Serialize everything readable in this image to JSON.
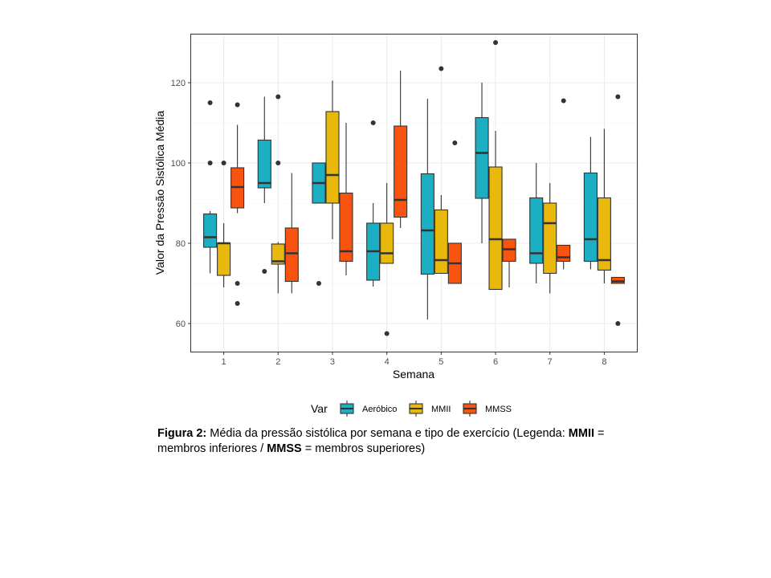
{
  "chart_data": {
    "type": "boxplot",
    "xlabel": "Semana",
    "ylabel": "Valor da Pressão Sistólica Média",
    "categories": [
      "1",
      "2",
      "3",
      "4",
      "5",
      "6",
      "7",
      "8"
    ],
    "ylim": [
      53,
      132
    ],
    "yticks": [
      60,
      80,
      100,
      120
    ],
    "grid": true,
    "legend": {
      "title": "Var",
      "position": "bottom"
    },
    "series": [
      {
        "name": "Aeróbico",
        "color": "#1CAFC3",
        "boxes": [
          {
            "category": "1",
            "wlo": 72.5,
            "q1": 79,
            "med": 81.5,
            "q3": 87.3,
            "whi": 88,
            "outliers": [
              115,
              100
            ]
          },
          {
            "category": "2",
            "wlo": 90,
            "q1": 93.8,
            "med": 95,
            "q3": 105.7,
            "whi": 116.5,
            "outliers": [
              73
            ]
          },
          {
            "category": "3",
            "wlo": 90,
            "q1": 90,
            "med": 95,
            "q3": 100,
            "whi": 100,
            "outliers": [
              70
            ]
          },
          {
            "category": "4",
            "wlo": 69.2,
            "q1": 70.8,
            "med": 78,
            "q3": 85,
            "whi": 90,
            "outliers": [
              110
            ]
          },
          {
            "category": "5",
            "wlo": 61,
            "q1": 72.3,
            "med": 83.2,
            "q3": 97.3,
            "whi": 116,
            "outliers": []
          },
          {
            "category": "6",
            "wlo": 80,
            "q1": 91.2,
            "med": 102.5,
            "q3": 111.3,
            "whi": 120,
            "outliers": []
          },
          {
            "category": "7",
            "wlo": 70,
            "q1": 75,
            "med": 77.5,
            "q3": 91.3,
            "whi": 100,
            "outliers": []
          },
          {
            "category": "8",
            "wlo": 73.5,
            "q1": 75.5,
            "med": 81,
            "q3": 97.5,
            "whi": 106.5,
            "outliers": []
          }
        ]
      },
      {
        "name": "MMII",
        "color": "#E8B80C",
        "boxes": [
          {
            "category": "1",
            "wlo": 69,
            "q1": 72,
            "med": 80,
            "q3": 80,
            "whi": 85,
            "outliers": [
              100
            ]
          },
          {
            "category": "2",
            "wlo": 67.5,
            "q1": 74.8,
            "med": 75.5,
            "q3": 79.8,
            "whi": 80.3,
            "outliers": [
              116.5,
              100
            ]
          },
          {
            "category": "3",
            "wlo": 81,
            "q1": 90,
            "med": 97,
            "q3": 112.8,
            "whi": 120.5,
            "outliers": []
          },
          {
            "category": "4",
            "wlo": 75,
            "q1": 75,
            "med": 77.5,
            "q3": 85,
            "whi": 95,
            "outliers": [
              57.5
            ]
          },
          {
            "category": "5",
            "wlo": 72.5,
            "q1": 72.5,
            "med": 75.8,
            "q3": 88.3,
            "whi": 92,
            "outliers": [
              123.5
            ]
          },
          {
            "category": "6",
            "wlo": 68.5,
            "q1": 68.5,
            "med": 81,
            "q3": 99,
            "whi": 108,
            "outliers": [
              130
            ]
          },
          {
            "category": "7",
            "wlo": 67.5,
            "q1": 72.5,
            "med": 85,
            "q3": 90,
            "whi": 95,
            "outliers": []
          },
          {
            "category": "8",
            "wlo": 70,
            "q1": 73.3,
            "med": 75.8,
            "q3": 91.3,
            "whi": 108.5,
            "outliers": []
          }
        ]
      },
      {
        "name": "MMSS",
        "color": "#F85410",
        "boxes": [
          {
            "category": "1",
            "wlo": 87.5,
            "q1": 88.8,
            "med": 94,
            "q3": 98.8,
            "whi": 109.5,
            "outliers": [
              114.5,
              70,
              65
            ]
          },
          {
            "category": "2",
            "wlo": 67.5,
            "q1": 70.5,
            "med": 77.5,
            "q3": 83.8,
            "whi": 97.5,
            "outliers": []
          },
          {
            "category": "3",
            "wlo": 72,
            "q1": 75.5,
            "med": 78,
            "q3": 92.5,
            "whi": 110,
            "outliers": []
          },
          {
            "category": "4",
            "wlo": 83.8,
            "q1": 86.5,
            "med": 90.8,
            "q3": 109.2,
            "whi": 123,
            "outliers": []
          },
          {
            "category": "5",
            "wlo": 70,
            "q1": 70,
            "med": 75,
            "q3": 80,
            "whi": 80,
            "outliers": [
              105
            ]
          },
          {
            "category": "6",
            "wlo": 69,
            "q1": 75.5,
            "med": 78.5,
            "q3": 81,
            "whi": 81,
            "outliers": []
          },
          {
            "category": "7",
            "wlo": 73.5,
            "q1": 75.5,
            "med": 76.5,
            "q3": 79.5,
            "whi": 79.5,
            "outliers": [
              115.5
            ]
          },
          {
            "category": "8",
            "wlo": 70,
            "q1": 70,
            "med": 70.5,
            "q3": 71.5,
            "whi": 71.5,
            "outliers": [
              116.5,
              60
            ]
          }
        ]
      }
    ]
  },
  "caption": {
    "label": "Figura 2:",
    "text_1": " Média da pressão sistólica por semana e tipo de exercício (Legenda: ",
    "term_1": "MMII",
    "text_2": " = membros inferiores / ",
    "term_2": "MMSS",
    "text_3": " = membros superiores)"
  }
}
